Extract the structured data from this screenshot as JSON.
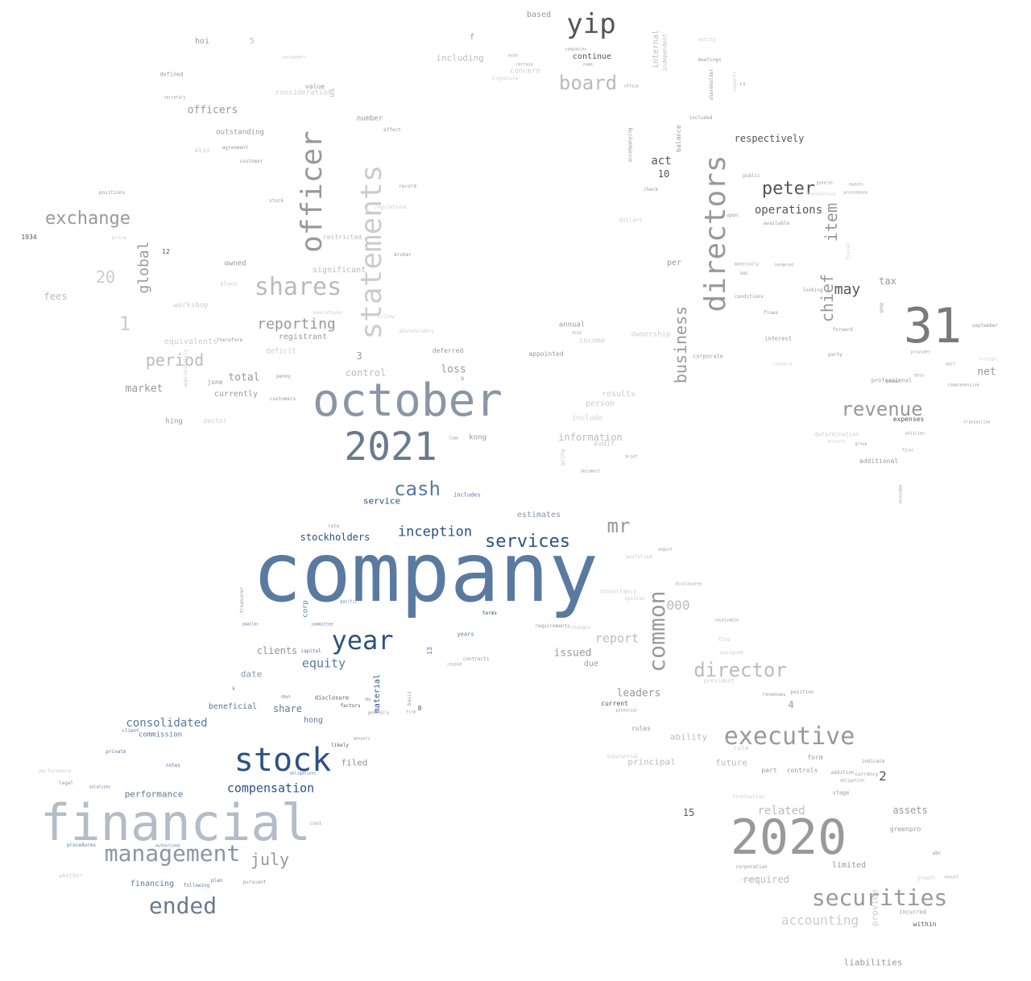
{
  "wordcloud": {
    "palette": {
      "dark_blue": "#2c5282",
      "steel_blue": "#5a7aa0",
      "slate": "#6b7b8e",
      "gray_blue": "#8a96a6",
      "light_slate": "#b3bcc7",
      "dark_gray": "#555555",
      "mid_gray": "#7a7a7a",
      "gray": "#999999",
      "light_gray": "#bbbbbb",
      "pale_gray": "#cccccc"
    },
    "words": [
      {
        "text": "company"
      },
      {
        "text": "financial"
      },
      {
        "text": "october"
      },
      {
        "text": "2021"
      },
      {
        "text": "2020"
      },
      {
        "text": "31"
      },
      {
        "text": "stock"
      },
      {
        "text": "statements"
      },
      {
        "text": "directors"
      },
      {
        "text": "officer"
      },
      {
        "text": "executive"
      },
      {
        "text": "securities"
      },
      {
        "text": "shares"
      },
      {
        "text": "management"
      },
      {
        "text": "year"
      },
      {
        "text": "ended"
      },
      {
        "text": "yip"
      },
      {
        "text": "board"
      },
      {
        "text": "exchange"
      },
      {
        "text": "revenue"
      },
      {
        "text": "cash"
      },
      {
        "text": "director"
      },
      {
        "text": "common"
      },
      {
        "text": "services"
      },
      {
        "text": "mr"
      },
      {
        "text": "peter"
      },
      {
        "text": "chief"
      },
      {
        "text": "item"
      },
      {
        "text": "business"
      },
      {
        "text": "reporting"
      },
      {
        "text": "period"
      },
      {
        "text": "global"
      },
      {
        "text": "july"
      },
      {
        "text": "inception"
      },
      {
        "text": "compensation"
      },
      {
        "text": "equity"
      },
      {
        "text": "consolidated"
      },
      {
        "text": "accounting"
      },
      {
        "text": "may"
      },
      {
        "text": "operations"
      },
      {
        "text": "stockholders"
      },
      {
        "text": "report"
      },
      {
        "text": "respectively"
      },
      {
        "text": "related"
      },
      {
        "text": "officers"
      },
      {
        "text": "1"
      },
      {
        "text": "20"
      },
      {
        "text": "market"
      },
      {
        "text": "act"
      },
      {
        "text": "10"
      },
      {
        "text": "loss"
      },
      {
        "text": "total"
      },
      {
        "text": "control"
      },
      {
        "text": "information"
      },
      {
        "text": "000"
      },
      {
        "text": "leaders"
      },
      {
        "text": "issued"
      },
      {
        "text": "clients"
      },
      {
        "text": "share"
      },
      {
        "text": "date"
      },
      {
        "text": "beneficial"
      },
      {
        "text": "hong"
      },
      {
        "text": "performance"
      },
      {
        "text": "financing"
      },
      {
        "text": "filed"
      },
      {
        "text": "net"
      },
      {
        "text": "tax"
      },
      {
        "text": "assets"
      },
      {
        "text": "2"
      },
      {
        "text": "4"
      },
      {
        "text": "15"
      },
      {
        "text": "limited"
      },
      {
        "text": "liabilities"
      },
      {
        "text": "required"
      },
      {
        "text": "fees"
      },
      {
        "text": "hoi"
      },
      {
        "text": "5"
      },
      {
        "text": "f"
      },
      {
        "text": "based"
      },
      {
        "text": "including"
      },
      {
        "text": "continue"
      },
      {
        "text": "internal"
      },
      {
        "text": "independent"
      },
      {
        "text": "concern"
      },
      {
        "text": "defined"
      },
      {
        "text": "number"
      },
      {
        "text": "value"
      },
      {
        "text": "us"
      },
      {
        "text": "consideration"
      },
      {
        "text": "outstanding"
      },
      {
        "text": "agreement"
      },
      {
        "text": "customer"
      },
      {
        "text": "also"
      },
      {
        "text": "hing"
      },
      {
        "text": "kong"
      },
      {
        "text": "service"
      },
      {
        "text": "includes"
      },
      {
        "text": "estimates"
      },
      {
        "text": "deferred"
      },
      {
        "text": "appointed"
      },
      {
        "text": "annual"
      },
      {
        "text": "income"
      },
      {
        "text": "ownership"
      },
      {
        "text": "3"
      },
      {
        "text": "9"
      },
      {
        "text": "results"
      },
      {
        "text": "person"
      },
      {
        "text": "include"
      },
      {
        "text": "audit"
      },
      {
        "text": "going"
      },
      {
        "text": "document"
      },
      {
        "text": "per"
      },
      {
        "text": "balance"
      },
      {
        "text": "upon"
      },
      {
        "text": "dollars"
      },
      {
        "text": "sec"
      },
      {
        "text": "interest"
      },
      {
        "text": "party"
      },
      {
        "text": "forward"
      },
      {
        "text": "professional"
      },
      {
        "text": "expenses"
      },
      {
        "text": "additional"
      },
      {
        "text": "september"
      },
      {
        "text": "corporate"
      },
      {
        "text": "standard"
      },
      {
        "text": "one"
      },
      {
        "text": "recorded"
      },
      {
        "text": "ability"
      },
      {
        "text": "principal"
      },
      {
        "text": "future"
      },
      {
        "text": "rules"
      },
      {
        "text": "current"
      },
      {
        "text": "due"
      },
      {
        "text": "part"
      },
      {
        "text": "controls"
      },
      {
        "text": "form"
      },
      {
        "text": "rule"
      },
      {
        "text": "addition"
      },
      {
        "text": "stage"
      },
      {
        "text": "indicate"
      },
      {
        "text": "greenpro"
      },
      {
        "text": "within"
      },
      {
        "text": "incurred"
      },
      {
        "text": "provide"
      },
      {
        "text": "corporation"
      },
      {
        "text": "president"
      },
      {
        "text": "commission"
      },
      {
        "text": "notes"
      },
      {
        "text": "procedures"
      },
      {
        "text": "plan"
      },
      {
        "text": "pursuant"
      },
      {
        "text": "following"
      },
      {
        "text": "cost"
      },
      {
        "text": "whether"
      },
      {
        "text": "material"
      },
      {
        "text": "13"
      },
      {
        "text": "8"
      },
      {
        "text": "years"
      },
      {
        "text": "contracts"
      },
      {
        "text": "terms"
      },
      {
        "text": "consultancy"
      },
      {
        "text": "opinion"
      },
      {
        "text": "requirements"
      },
      {
        "text": "changes"
      },
      {
        "text": "corp"
      },
      {
        "text": "treasurer"
      },
      {
        "text": "capital"
      },
      {
        "text": "rate"
      },
      {
        "text": "disclosure"
      },
      {
        "text": "registrant"
      },
      {
        "text": "significant"
      },
      {
        "text": "restricted"
      },
      {
        "text": "broker"
      },
      {
        "text": "owned"
      },
      {
        "text": "plans"
      },
      {
        "text": "workshop"
      },
      {
        "text": "equivalents"
      },
      {
        "text": "deficit"
      },
      {
        "text": "june"
      },
      {
        "text": "currently"
      },
      {
        "text": "customers"
      },
      {
        "text": "penny"
      },
      {
        "text": "doctor"
      },
      {
        "text": "shareholders"
      },
      {
        "text": "executives"
      },
      {
        "text": "1934"
      },
      {
        "text": "12"
      },
      {
        "text": "positions"
      },
      {
        "text": "price"
      },
      {
        "text": "k"
      },
      {
        "text": "private"
      },
      {
        "text": "performance"
      },
      {
        "text": "check"
      },
      {
        "text": "accompanying"
      },
      {
        "text": "public"
      },
      {
        "text": "available"
      },
      {
        "text": "looking"
      },
      {
        "text": "flows"
      },
      {
        "text": "conditions"
      },
      {
        "text": "materially"
      },
      {
        "text": "rendered"
      },
      {
        "text": "included"
      },
      {
        "text": "meetings"
      },
      {
        "text": "shareholder"
      },
      {
        "text": "reports"
      },
      {
        "text": "cs"
      },
      {
        "text": "office"
      },
      {
        "text": "companies"
      },
      {
        "text": "certain"
      },
      {
        "text": "name"
      },
      {
        "text": "note"
      },
      {
        "text": "entity"
      },
      {
        "text": "asia"
      },
      {
        "text": "likely"
      },
      {
        "text": "factors"
      },
      {
        "text": "generally"
      },
      {
        "text": "mu"
      },
      {
        "text": "amounts"
      },
      {
        "text": "obligations"
      },
      {
        "text": "authorized"
      },
      {
        "text": "legal"
      },
      {
        "text": "solutions"
      },
      {
        "text": "client"
      },
      {
        "text": "stated"
      },
      {
        "text": "qualified"
      },
      {
        "text": "august"
      },
      {
        "text": "disclosures"
      },
      {
        "text": "receivable"
      },
      {
        "text": "file"
      },
      {
        "text": "assigned"
      },
      {
        "text": "revenues"
      },
      {
        "text": "position"
      },
      {
        "text": "potential"
      },
      {
        "text": "currency"
      },
      {
        "text": "obligation"
      },
      {
        "text": "fiscal"
      },
      {
        "text": "growth"
      },
      {
        "text": "result"
      },
      {
        "text": "abc"
      },
      {
        "text": "group"
      },
      {
        "text": "determination"
      },
      {
        "text": "accounts"
      },
      {
        "text": "comprehensive"
      },
      {
        "text": "provider"
      },
      {
        "text": "power"
      },
      {
        "text": "policies"
      },
      {
        "text": "filer"
      },
      {
        "text": "transaction"
      },
      {
        "text": "foreign"
      },
      {
        "text": "brief"
      },
      {
        "text": "time"
      },
      {
        "text": "data"
      },
      {
        "text": "xbrl"
      },
      {
        "text": "stock"
      },
      {
        "text": "general"
      },
      {
        "text": "accordance"
      },
      {
        "text": "transactions"
      },
      {
        "text": "events"
      },
      {
        "text": "pacific"
      },
      {
        "text": "smaller"
      },
      {
        "text": "committee"
      },
      {
        "text": "days"
      },
      {
        "text": "firm"
      },
      {
        "text": "basis"
      },
      {
        "text": "therefore"
      },
      {
        "text": "follow"
      },
      {
        "text": "record"
      },
      {
        "text": "regulations"
      },
      {
        "text": "effect"
      },
      {
        "text": "secretary"
      },
      {
        "text": "management"
      },
      {
        "text": "approximately"
      },
      {
        "text": "signature"
      },
      {
        "text": "recent"
      },
      {
        "text": "termination"
      },
      {
        "text": "substantial"
      }
    ]
  }
}
